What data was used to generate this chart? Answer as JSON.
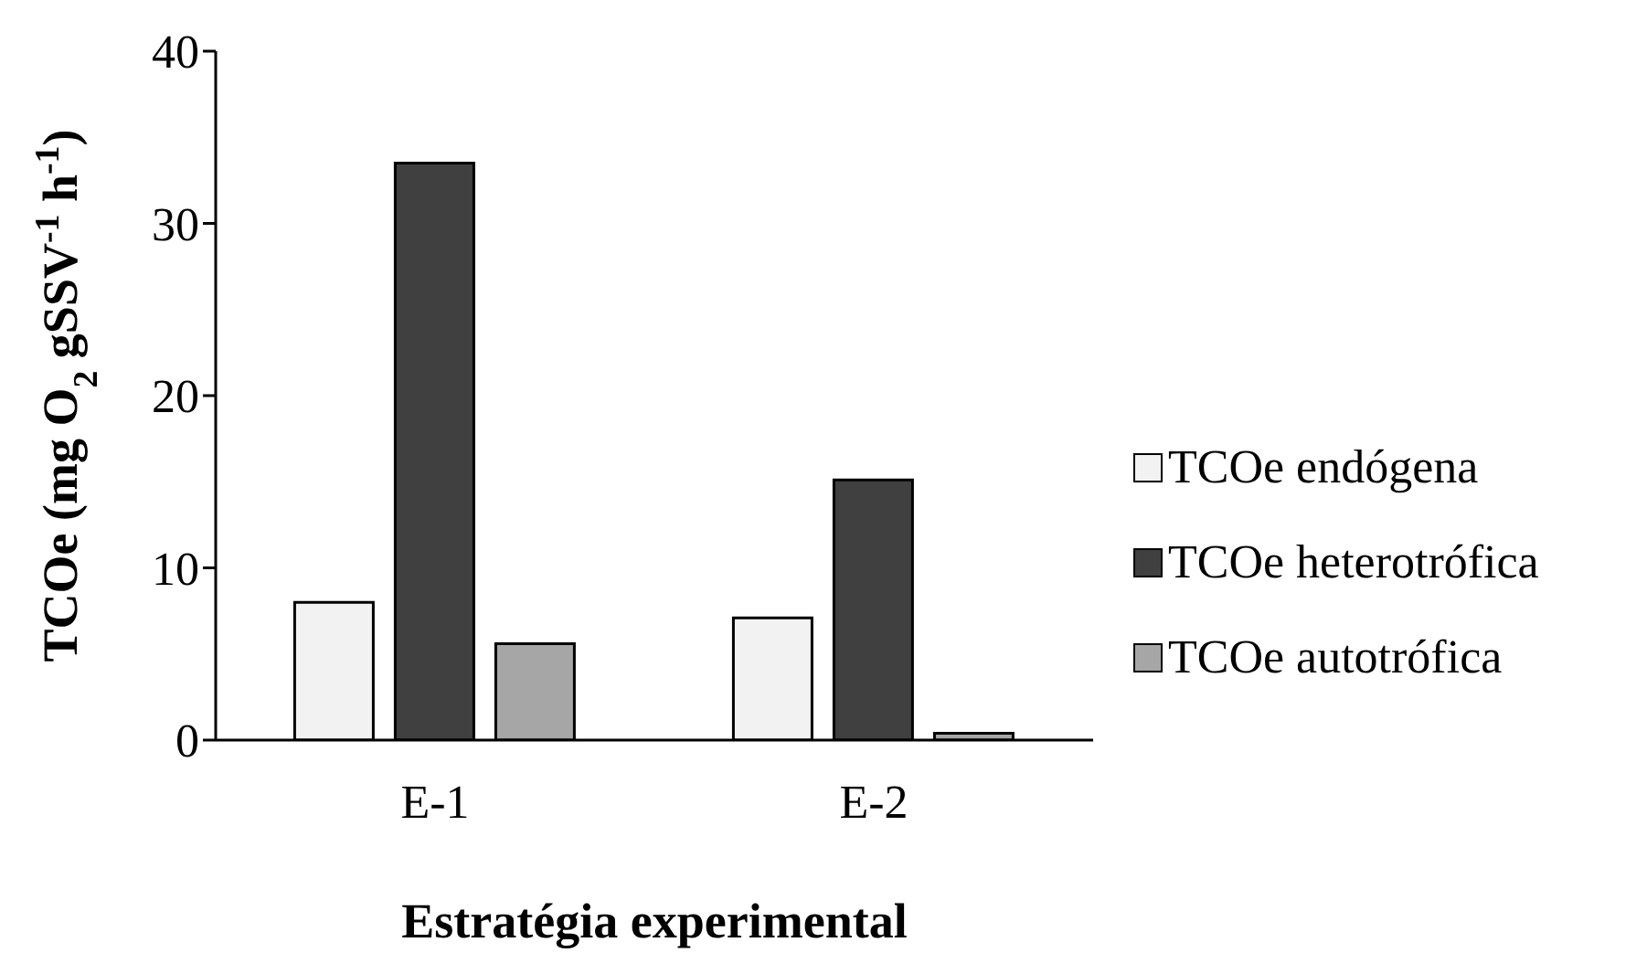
{
  "chart_data": {
    "type": "bar",
    "xlabel": "Estratégia experimental",
    "ylabel": "TCOe (mg O$_{2}$ gSSV$^{-1}$ h$^{-1}$)",
    "categories": [
      "E-1",
      "E-2"
    ],
    "series": [
      {
        "name": "TCOe endógena",
        "color": "#f2f2f2",
        "values": [
          8.0,
          7.1
        ]
      },
      {
        "name": "TCOe heterotrófica",
        "color": "#404040",
        "values": [
          33.5,
          15.1
        ]
      },
      {
        "name": "TCOe autotrófica",
        "color": "#a6a6a6",
        "values": [
          5.6,
          0.4
        ]
      }
    ],
    "ylim": [
      0,
      40
    ],
    "yticks": [
      0,
      10,
      20,
      30,
      40
    ],
    "grid": false,
    "legend": "right"
  }
}
